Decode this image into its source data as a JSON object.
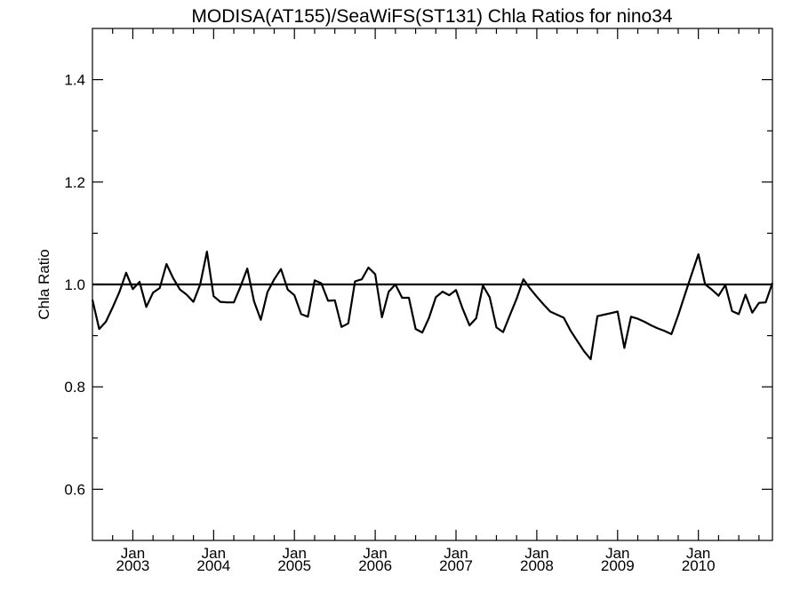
{
  "chart_data": {
    "type": "line",
    "title": "MODISA(AT155)/SeaWiFS(ST131)  Chla Ratios for nino34",
    "xlabel": "",
    "ylabel": "Chla Ratio",
    "xlim": [
      "2002-07",
      "2010-12"
    ],
    "ylim": [
      0.5,
      1.5
    ],
    "yticks_labeled": [
      0.6,
      0.8,
      1.0,
      1.2,
      1.4
    ],
    "yticks_labels": [
      "0.6",
      "0.8",
      "1.0",
      "1.2",
      "1.4"
    ],
    "yticks_minor_step": 0.1,
    "xticks": [
      {
        "date": "2003-01",
        "month": "Jan",
        "year": "2003"
      },
      {
        "date": "2004-01",
        "month": "Jan",
        "year": "2004"
      },
      {
        "date": "2005-01",
        "month": "Jan",
        "year": "2005"
      },
      {
        "date": "2006-01",
        "month": "Jan",
        "year": "2006"
      },
      {
        "date": "2007-01",
        "month": "Jan",
        "year": "2007"
      },
      {
        "date": "2008-01",
        "month": "Jan",
        "year": "2008"
      },
      {
        "date": "2009-01",
        "month": "Jan",
        "year": "2009"
      },
      {
        "date": "2010-01",
        "month": "Jan",
        "year": "2010"
      }
    ],
    "reference_line": {
      "y": 1.0
    },
    "grid": false,
    "series": [
      {
        "x": [
          "2002-07",
          "2002-08",
          "2002-09",
          "2002-10",
          "2002-11",
          "2002-12",
          "2003-01",
          "2003-02",
          "2003-03",
          "2003-04",
          "2003-05",
          "2003-06",
          "2003-07",
          "2003-08",
          "2003-09",
          "2003-10",
          "2003-11",
          "2003-12",
          "2004-01",
          "2004-02",
          "2004-03",
          "2004-04",
          "2004-05",
          "2004-06",
          "2004-07",
          "2004-08",
          "2004-09",
          "2004-10",
          "2004-11",
          "2004-12",
          "2005-01",
          "2005-02",
          "2005-03",
          "2005-04",
          "2005-05",
          "2005-06",
          "2005-07",
          "2005-08",
          "2005-09",
          "2005-10",
          "2005-11",
          "2005-12",
          "2006-01",
          "2006-02",
          "2006-03",
          "2006-04",
          "2006-05",
          "2006-06",
          "2006-07",
          "2006-08",
          "2006-09",
          "2006-10",
          "2006-11",
          "2006-12",
          "2007-01",
          "2007-02",
          "2007-03",
          "2007-04",
          "2007-05",
          "2007-06",
          "2007-07",
          "2007-08",
          "2007-09",
          "2007-10",
          "2007-11",
          "2007-12",
          "2008-01",
          "2008-02",
          "2008-03",
          "2008-04",
          "2008-05",
          "2008-06",
          "2008-07",
          "2008-08",
          "2008-09",
          "2008-10",
          "2008-11",
          "2008-12",
          "2009-01",
          "2009-02",
          "2009-03",
          "2009-04",
          "2009-05",
          "2009-06",
          "2009-07",
          "2009-08",
          "2009-09",
          "2009-10",
          "2009-11",
          "2009-12",
          "2010-01",
          "2010-02",
          "2010-03",
          "2010-04",
          "2010-05",
          "2010-06",
          "2010-07",
          "2010-08",
          "2010-09",
          "2010-10",
          "2010-11",
          "2010-12"
        ],
        "y": [
          0.97,
          0.913,
          0.927,
          0.955,
          0.985,
          1.023,
          0.991,
          1.005,
          0.956,
          0.984,
          0.993,
          1.04,
          1.012,
          0.99,
          0.98,
          0.966,
          1.0,
          1.064,
          0.977,
          0.966,
          0.965,
          0.965,
          0.996,
          1.031,
          0.967,
          0.931,
          0.985,
          1.01,
          1.03,
          0.99,
          0.979,
          0.942,
          0.937,
          1.008,
          1.002,
          0.968,
          0.969,
          0.917,
          0.924,
          1.006,
          1.01,
          1.033,
          1.02,
          0.936,
          0.986,
          1.0,
          0.974,
          0.974,
          0.913,
          0.906,
          0.935,
          0.975,
          0.986,
          0.979,
          0.989,
          0.952,
          0.92,
          0.934,
          0.998,
          0.975,
          0.916,
          0.907,
          0.94,
          0.972,
          1.01,
          0.992,
          0.976,
          0.961,
          0.947,
          0.941,
          0.935,
          0.91,
          0.89,
          0.87,
          0.854,
          0.938,
          0.941,
          0.944,
          0.947,
          0.876,
          0.937,
          0.933,
          0.927,
          0.92,
          0.914,
          0.909,
          0.903,
          0.94,
          0.98,
          1.02,
          1.059,
          1.0,
          0.99,
          0.978,
          0.999,
          0.948,
          0.942,
          0.98,
          0.945,
          0.964,
          0.965,
          1.003
        ]
      }
    ]
  }
}
